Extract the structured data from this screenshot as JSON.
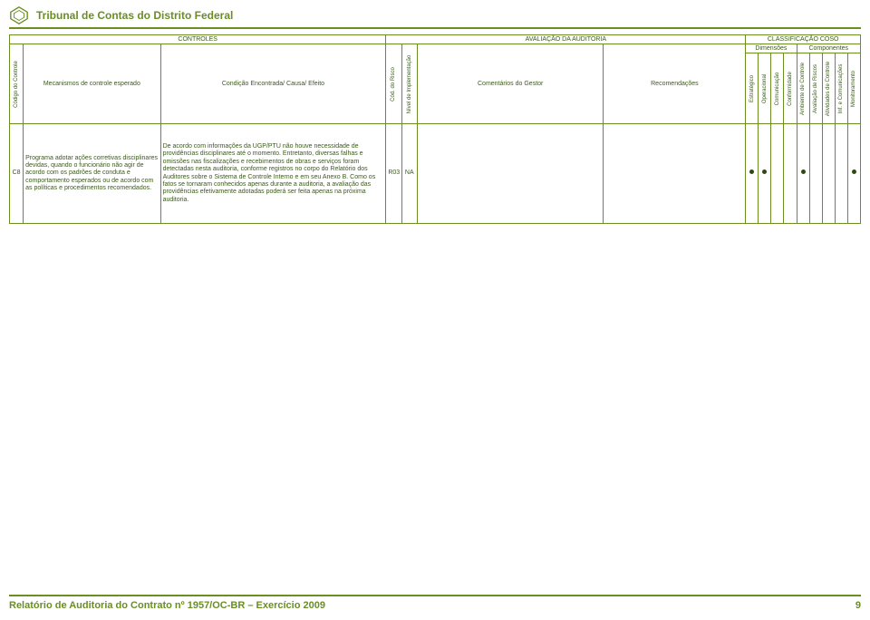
{
  "header": {
    "title": "Tribunal de Contas do Distrito Federal"
  },
  "footer": {
    "text": "Relatório de Auditoria do Contrato nº 1957/OC-BR – Exercício 2009",
    "page": "9"
  },
  "table": {
    "groups": {
      "controles": "CONTROLES",
      "avaliacao": "AVALIAÇÃO DA AUDITORIA",
      "coso": "CLASSIFICAÇÃO COSO",
      "dimensoes": "Dimensões",
      "componentes": "Componentes"
    },
    "headers": {
      "codigo": "Código do Controle",
      "mecanismos": "Mecanismos de controle esperado",
      "condicao": "Condição Encontrada/ Causa/ Efeito",
      "risco": "Cód. do Risco",
      "impl": "Nível de Implementação",
      "comentarios": "Comentários do Gestor",
      "recomendacoes": "Recomendações",
      "dim": {
        "estrategico": "Estratégico",
        "operacional": "Operacional",
        "comunicacao": "Comunicação",
        "conformidade": "Conformidade"
      },
      "comp": {
        "ambiente": "Ambiente de Controle",
        "avaliacao": "Avaliação de Riscos",
        "atividades": "Atividades de Controle",
        "inf": "Inf. e Comunicações",
        "monitoramento": "Monitoramento"
      }
    },
    "row": {
      "codigo": "C8",
      "mecanismos": "Programa adotar  ações corretivas disciplinares devidas, quando o funcionário não agir de acordo com os padrões de conduta e comportamento esperados ou de acordo com as políticas e procedimentos recomendados.",
      "condicao": "De acordo com informações da UGP/PTU não houve necessidade de providências disciplinares até o momento. Entretanto, diversas falhas e omissões nas fiscalizações e recebimentos de obras e serviços foram detectadas nesta auditoria, conforme registros no corpo do Relatório dos Auditores sobre o Sistema de Controle Interno e em seu Anexo B. Como  os fatos se tornaram conhecidos apenas durante a auditoria, a avaliação das providências efetivamente adotadas poderá ser feita apenas na próxima auditoria.",
      "risco": "R03",
      "impl": "NA",
      "comentarios": "",
      "recomendacoes": "",
      "dots": {
        "estrategico": true,
        "operacional": true,
        "comunicacao": false,
        "conformidade": false,
        "ambiente": true,
        "avaliacao": false,
        "atividades": false,
        "inf": false,
        "monitoramento": true
      }
    }
  },
  "colors": {
    "accent": "#6b8e23",
    "text": "#3a5a1a"
  }
}
